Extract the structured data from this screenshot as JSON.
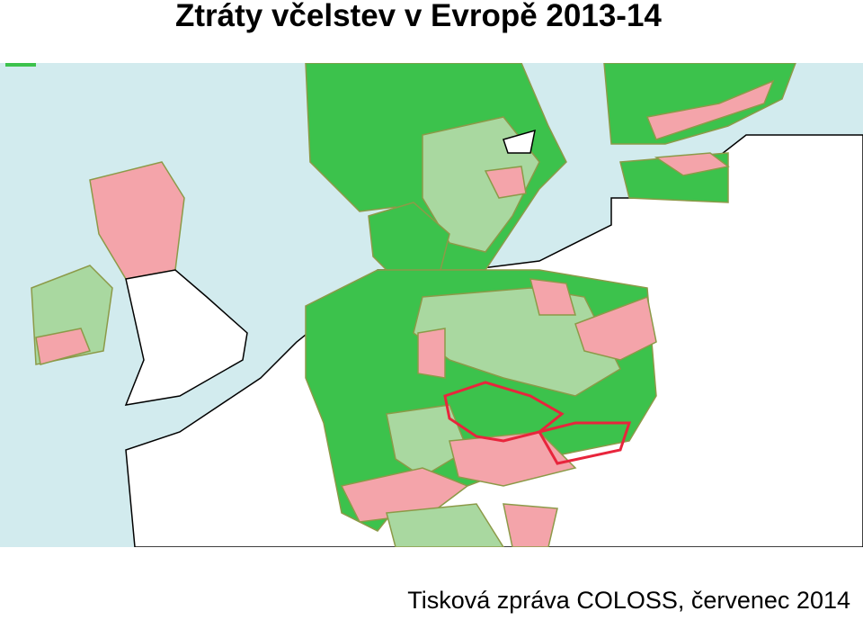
{
  "header": {
    "title": "Ztráty včelstev v Evropě 2013-14"
  },
  "footer": {
    "caption": "Tisková zpráva COLOSS, červenec 2014"
  }
}
